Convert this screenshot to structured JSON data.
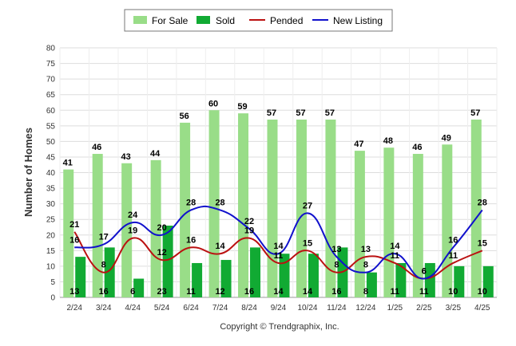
{
  "chart_data": {
    "type": "bar",
    "categories": [
      "2/24",
      "3/24",
      "4/24",
      "5/24",
      "6/24",
      "7/24",
      "8/24",
      "9/24",
      "10/24",
      "11/24",
      "12/24",
      "1/25",
      "2/25",
      "3/25",
      "4/25"
    ],
    "series": [
      {
        "name": "For Sale",
        "kind": "bar",
        "color": "#99dd88",
        "values": [
          41,
          46,
          43,
          44,
          56,
          60,
          59,
          57,
          57,
          57,
          47,
          48,
          46,
          49,
          57
        ]
      },
      {
        "name": "Sold",
        "kind": "bar",
        "color": "#11aa33",
        "values": [
          13,
          16,
          6,
          23,
          11,
          12,
          16,
          14,
          14,
          16,
          8,
          11,
          11,
          10,
          10
        ]
      },
      {
        "name": "Pended",
        "kind": "line",
        "color": "#bb1111",
        "values": [
          21,
          8,
          19,
          12,
          16,
          14,
          19,
          11,
          15,
          8,
          13,
          11,
          6,
          11,
          15
        ]
      },
      {
        "name": "New Listing",
        "kind": "line",
        "color": "#1111cc",
        "values": [
          16,
          17,
          24,
          20,
          28,
          28,
          22,
          14,
          27,
          13,
          8,
          14,
          6,
          16,
          28
        ]
      }
    ],
    "ylabel": "Number of Homes",
    "xlabel": "",
    "ylim": [
      0,
      80
    ],
    "yticks": [
      0,
      5,
      10,
      15,
      20,
      25,
      30,
      35,
      40,
      45,
      50,
      55,
      60,
      65,
      70,
      75,
      80
    ],
    "grid": true,
    "legend": "top-center",
    "footer": "Copyright © Trendgraphix, Inc."
  }
}
